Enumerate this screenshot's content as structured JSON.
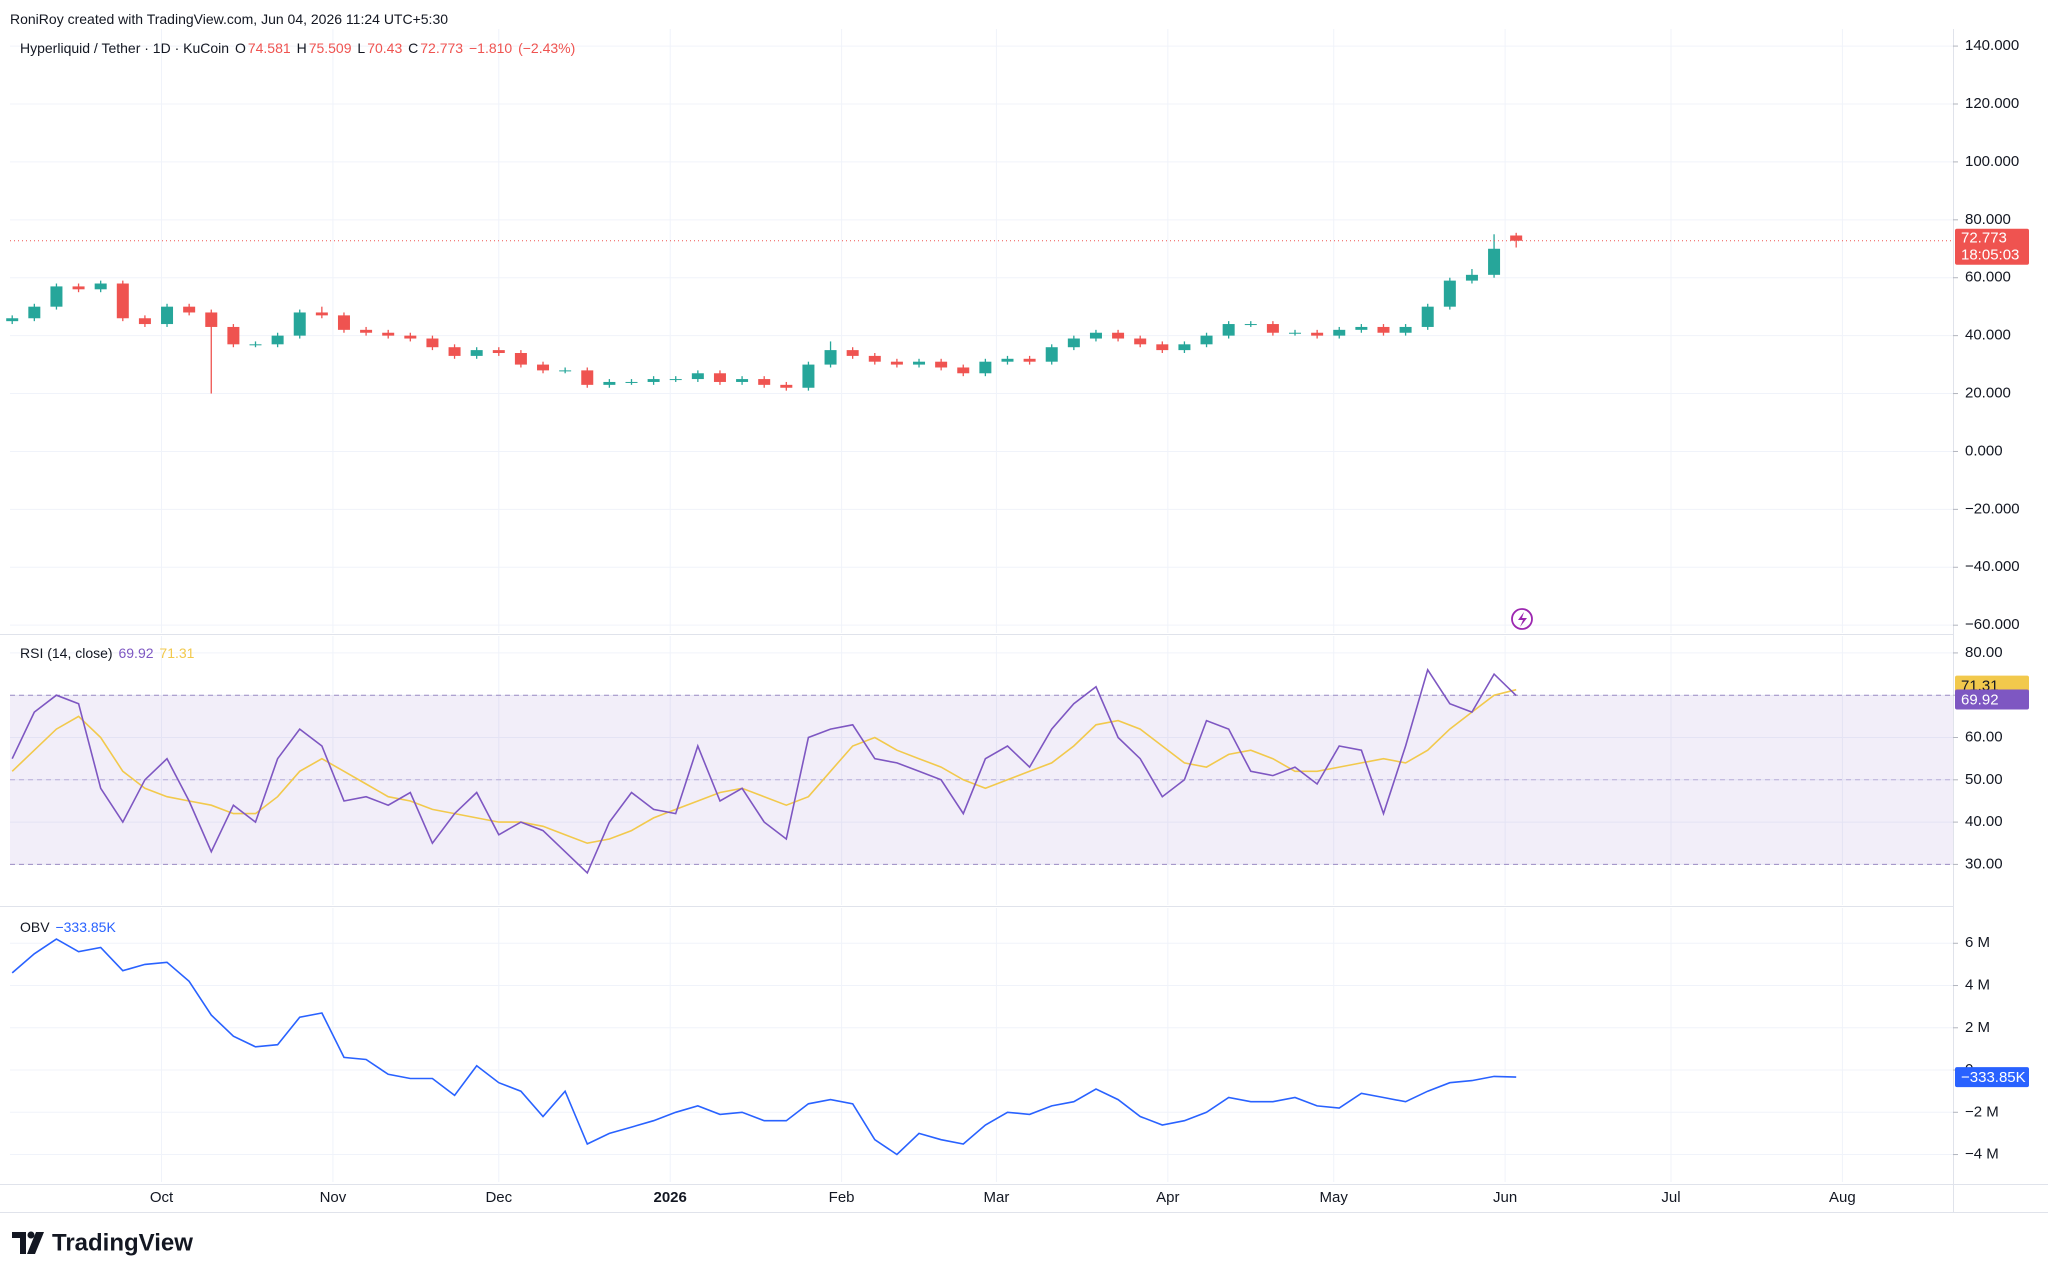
{
  "header": {
    "attribution": "RoniRoy created with TradingView.com, Jun 04, 2026 11:24 UTC+5:30"
  },
  "footer": {
    "logo": "TradingView"
  },
  "chart_data": [
    {
      "type": "candlestick",
      "title": "Hyperliquid / Tether · 1D · KuCoin",
      "ohlc_letters": [
        "O",
        "H",
        "L",
        "C"
      ],
      "change": {
        "value": -1.81,
        "label": "−1.810"
      },
      "change_pct": {
        "value": -2.43,
        "label": "(−2.43%)"
      },
      "countdown": "18:05:03",
      "up_color": "#26a69a",
      "down_color": "#ef5350",
      "x": [
        3,
        7,
        11,
        15,
        19,
        23,
        27,
        31,
        35,
        39,
        43,
        47,
        51,
        55,
        59,
        63,
        67,
        71,
        75,
        79,
        83,
        87,
        91,
        95,
        99,
        103,
        107,
        111,
        115,
        119,
        123,
        127,
        131,
        135,
        139,
        143,
        147,
        151,
        155,
        159,
        163,
        167,
        171,
        175,
        179,
        183,
        187,
        191,
        195,
        199,
        203,
        207,
        211,
        215,
        219,
        223,
        227,
        231,
        235,
        239,
        243,
        247,
        251,
        255,
        259,
        263,
        267,
        271,
        275
      ],
      "open": [
        45,
        46,
        50,
        57,
        56,
        58,
        46,
        44,
        50,
        48,
        43,
        37,
        37,
        40,
        48,
        47,
        42,
        41,
        40,
        39,
        36,
        33,
        35,
        34,
        30,
        28,
        28,
        23,
        24,
        24,
        25,
        25,
        27,
        24,
        25,
        23,
        22,
        30,
        35,
        33,
        31,
        30,
        31,
        29,
        27,
        31,
        32,
        31,
        36,
        39,
        41,
        39,
        37,
        35,
        37,
        40,
        44,
        44,
        41,
        41,
        40,
        42,
        43,
        41,
        43,
        50,
        59,
        61,
        74.581
      ],
      "high": [
        47,
        51,
        58,
        58,
        59,
        59,
        47,
        51,
        51,
        49,
        44,
        38,
        41,
        49,
        50,
        48,
        43,
        42,
        41,
        40,
        37,
        36,
        36,
        35,
        31,
        29,
        29,
        25,
        25,
        26,
        26,
        28,
        28,
        26,
        26,
        24,
        31,
        38,
        36,
        34,
        32,
        32,
        32,
        30,
        32,
        33,
        33,
        37,
        40,
        42,
        42,
        40,
        38,
        38,
        41,
        45,
        45,
        45,
        42,
        42,
        43,
        44,
        44,
        44,
        51,
        60,
        63,
        75,
        75.509
      ],
      "low": [
        44,
        45,
        49,
        55,
        55,
        45,
        43,
        43,
        47,
        20,
        36,
        36,
        36,
        39,
        46,
        41,
        40,
        39,
        38,
        35,
        32,
        32,
        33,
        29,
        27,
        27,
        22,
        22,
        23,
        23,
        24,
        24,
        23,
        23,
        22,
        21,
        21,
        29,
        32,
        30,
        29,
        29,
        28,
        26,
        26,
        30,
        30,
        30,
        35,
        38,
        38,
        36,
        34,
        34,
        36,
        39,
        43,
        40,
        40,
        39,
        39,
        41,
        40,
        40,
        42,
        49,
        58,
        60,
        70.43
      ],
      "close": [
        46,
        50,
        57,
        56,
        58,
        46,
        44,
        50,
        48,
        43,
        37,
        37,
        40,
        48,
        47,
        42,
        41,
        40,
        39,
        36,
        33,
        35,
        34,
        30,
        28,
        28,
        23,
        24,
        24,
        25,
        25,
        27,
        24,
        25,
        23,
        22,
        30,
        35,
        33,
        31,
        30,
        31,
        29,
        27,
        31,
        32,
        31,
        36,
        39,
        41,
        39,
        37,
        35,
        37,
        40,
        44,
        44,
        41,
        41,
        40,
        42,
        43,
        41,
        43,
        50,
        59,
        61,
        70,
        72.773
      ],
      "ylim": [
        -62.7,
        145.9
      ],
      "yticks": [
        {
          "value": 140,
          "label": "140.000"
        },
        {
          "value": 120,
          "label": "120.000"
        },
        {
          "value": 100,
          "label": "100.000"
        },
        {
          "value": 80,
          "label": "80.000"
        },
        {
          "value": 60,
          "label": "60.000"
        },
        {
          "value": 40,
          "label": "40.000"
        },
        {
          "value": 20,
          "label": "20.000"
        },
        {
          "value": 0,
          "label": "0.000"
        },
        {
          "value": -20,
          "label": "−20.000"
        },
        {
          "value": -40,
          "label": "−40.000"
        },
        {
          "value": -60,
          "label": "−60.000"
        }
      ],
      "grid": true
    },
    {
      "type": "line",
      "title": "RSI (14, close)",
      "series": [
        {
          "color": "#7e57c2",
          "values": [
            55,
            66,
            70,
            68,
            48,
            40,
            50,
            55,
            45,
            33,
            44,
            40,
            55,
            62,
            58,
            45,
            46,
            44,
            47,
            35,
            42,
            47,
            37,
            40,
            38,
            33,
            28,
            40,
            47,
            43,
            42,
            58,
            45,
            48,
            40,
            36,
            60,
            62,
            63,
            55,
            54,
            52,
            50,
            42,
            55,
            58,
            53,
            62,
            68,
            72,
            60,
            55,
            46,
            50,
            64,
            62,
            52,
            51,
            53,
            49,
            58,
            57,
            42,
            58,
            76,
            68,
            66,
            75,
            69.92
          ]
        },
        {
          "color": "#f2c94c",
          "values": [
            52,
            57,
            62,
            65,
            60,
            52,
            48,
            46,
            45,
            44,
            42,
            42,
            46,
            52,
            55,
            52,
            49,
            46,
            45,
            43,
            42,
            41,
            40,
            40,
            39,
            37,
            35,
            36,
            38,
            41,
            43,
            45,
            47,
            48,
            46,
            44,
            46,
            52,
            58,
            60,
            57,
            55,
            53,
            50,
            48,
            50,
            52,
            54,
            58,
            63,
            64,
            62,
            58,
            54,
            53,
            56,
            57,
            55,
            52,
            52,
            53,
            54,
            55,
            54,
            57,
            62,
            66,
            70,
            71.31
          ]
        }
      ],
      "band": [
        30,
        70
      ],
      "midline": 50,
      "ylim": [
        20.4,
        84
      ],
      "yticks": [
        {
          "value": 80,
          "label": "80.00"
        },
        {
          "value": 70,
          "label": "70.00"
        },
        {
          "value": 60,
          "label": "60.00"
        },
        {
          "value": 50,
          "label": "50.00"
        },
        {
          "value": 40,
          "label": "40.00"
        },
        {
          "value": 30,
          "label": "30.00"
        }
      ],
      "grid": true
    },
    {
      "type": "line",
      "title": "OBV",
      "series": [
        {
          "color": "#2962ff",
          "values": [
            4600000,
            5500000,
            6200000,
            5600000,
            5800000,
            4700000,
            5000000,
            5100000,
            4200000,
            2600000,
            1600000,
            1100000,
            1200000,
            2500000,
            2700000,
            600000,
            500000,
            -200000,
            -400000,
            -400000,
            -1200000,
            200000,
            -600000,
            -1000000,
            -2200000,
            -1000000,
            -3500000,
            -3000000,
            -2700000,
            -2400000,
            -2000000,
            -1700000,
            -2100000,
            -2000000,
            -2400000,
            -2400000,
            -1600000,
            -1400000,
            -1600000,
            -3300000,
            -4000000,
            -3000000,
            -3300000,
            -3500000,
            -2600000,
            -2000000,
            -2100000,
            -1700000,
            -1500000,
            -900000,
            -1400000,
            -2200000,
            -2600000,
            -2400000,
            -2000000,
            -1300000,
            -1500000,
            -1500000,
            -1300000,
            -1700000,
            -1800000,
            -1100000,
            -1300000,
            -1500000,
            -1000000,
            -600000,
            -500000,
            -300000,
            -333850
          ],
          "last_value_label": "−333.85K"
        }
      ],
      "ylim": [
        -5300000,
        7670000
      ],
      "yticks": [
        {
          "value": 6000000,
          "label": "6 M"
        },
        {
          "value": 4000000,
          "label": "4 M"
        },
        {
          "value": 2000000,
          "label": "2 M"
        },
        0,
        {
          "value": -2000000,
          "label": "−2 M"
        },
        {
          "value": -4000000,
          "label": "−4 M"
        }
      ],
      "xlim": [
        2.6,
        354
      ],
      "xticks": [
        {
          "value": 30,
          "label": "Oct"
        },
        {
          "value": 61,
          "label": "Nov"
        },
        {
          "value": 91,
          "label": "Dec"
        },
        {
          "value": 122,
          "label": "2026"
        },
        {
          "value": 153,
          "label": "Feb"
        },
        {
          "value": 181,
          "label": "Mar"
        },
        {
          "value": 212,
          "label": "Apr"
        },
        {
          "value": 242,
          "label": "May"
        },
        {
          "value": 273,
          "label": "Jun"
        },
        {
          "value": 303,
          "label": "Jul"
        },
        {
          "value": 334,
          "label": "Aug"
        }
      ],
      "grid": true
    }
  ]
}
